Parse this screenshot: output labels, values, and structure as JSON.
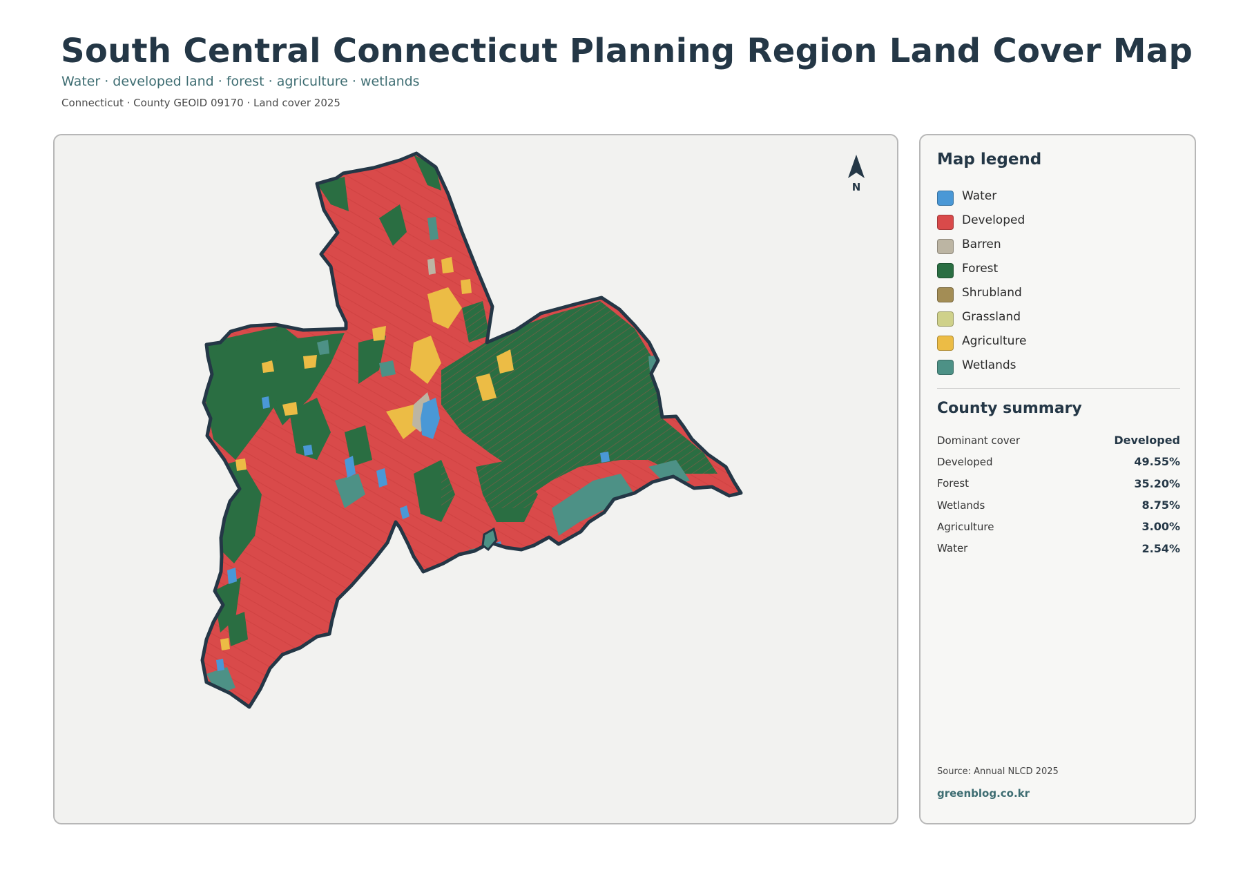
{
  "header": {
    "title": "South Central Connecticut Planning Region Land Cover Map",
    "subtitle": "Water · developed land · forest · agriculture · wetlands",
    "meta": "Connecticut · County GEOID 09170 · Land cover 2025"
  },
  "map": {
    "north_label": "N",
    "north_icon": "north-arrow-icon",
    "land_cover_shares": {
      "developed": 49.55,
      "forest": 35.2,
      "wetlands": 8.75,
      "agriculture": 3.0,
      "water": 2.54
    }
  },
  "legend": {
    "title": "Map legend",
    "items": [
      {
        "label": "Water",
        "color": "#4a98d6"
      },
      {
        "label": "Developed",
        "color": "#d94a4a"
      },
      {
        "label": "Barren",
        "color": "#bcb5a3"
      },
      {
        "label": "Forest",
        "color": "#2a6e42"
      },
      {
        "label": "Shrubland",
        "color": "#a38d55"
      },
      {
        "label": "Grassland",
        "color": "#cfd18a"
      },
      {
        "label": "Agriculture",
        "color": "#ecbc45"
      },
      {
        "label": "Wetlands",
        "color": "#4d9186"
      }
    ]
  },
  "summary": {
    "title": "County summary",
    "rows": [
      {
        "label": "Dominant cover",
        "value": "Developed"
      },
      {
        "label": "Developed",
        "value": "49.55%"
      },
      {
        "label": "Forest",
        "value": "35.20%"
      },
      {
        "label": "Wetlands",
        "value": "8.75%"
      },
      {
        "label": "Agriculture",
        "value": "3.00%"
      },
      {
        "label": "Water",
        "value": "2.54%"
      }
    ]
  },
  "footer": {
    "source": "Source: Annual NLCD 2025",
    "site": "greenblog.co.kr"
  }
}
